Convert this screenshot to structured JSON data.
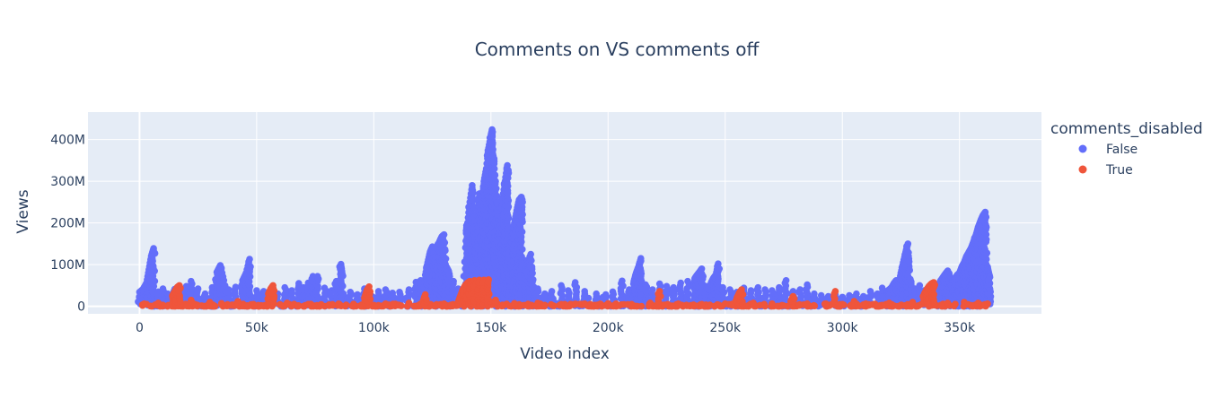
{
  "chart_data": {
    "type": "scatter",
    "title": "Comments on VS comments off",
    "xlabel": "Video index",
    "ylabel": "Views",
    "xlim": [
      -22000,
      385000
    ],
    "ylim": [
      -18000000,
      466000000
    ],
    "x_ticks": [
      0,
      50000,
      100000,
      150000,
      200000,
      250000,
      300000,
      350000
    ],
    "x_tick_labels": [
      "0",
      "50k",
      "100k",
      "150k",
      "200k",
      "250k",
      "300k",
      "350k"
    ],
    "y_ticks": [
      0,
      100000000,
      200000000,
      300000000,
      400000000
    ],
    "y_tick_labels": [
      "0",
      "100M",
      "200M",
      "300M",
      "400M"
    ],
    "grid": true,
    "legend": {
      "title": "comments_disabled",
      "placement": "right"
    },
    "series": [
      {
        "name": "False",
        "color": "#636efa",
        "points": [
          [
            0,
            34000000
          ],
          [
            1500,
            41000000
          ],
          [
            3000,
            56000000
          ],
          [
            4000,
            88000000
          ],
          [
            5000,
            120000000
          ],
          [
            6000,
            139000000
          ],
          [
            8000,
            35000000
          ],
          [
            10000,
            42000000
          ],
          [
            12000,
            30000000
          ],
          [
            15000,
            41000000
          ],
          [
            18000,
            37000000
          ],
          [
            20000,
            48000000
          ],
          [
            22000,
            60000000
          ],
          [
            25000,
            42000000
          ],
          [
            28000,
            30000000
          ],
          [
            31000,
            45000000
          ],
          [
            33000,
            82000000
          ],
          [
            34500,
            98000000
          ],
          [
            36000,
            62000000
          ],
          [
            38000,
            40000000
          ],
          [
            41000,
            46000000
          ],
          [
            44000,
            62000000
          ],
          [
            45500,
            80000000
          ],
          [
            47000,
            113000000
          ],
          [
            50000,
            38000000
          ],
          [
            53000,
            36000000
          ],
          [
            56000,
            26000000
          ],
          [
            59000,
            30000000
          ],
          [
            62000,
            45000000
          ],
          [
            65000,
            38000000
          ],
          [
            68000,
            55000000
          ],
          [
            70000,
            45000000
          ],
          [
            72000,
            56000000
          ],
          [
            74000,
            72000000
          ],
          [
            76000,
            72000000
          ],
          [
            79000,
            44000000
          ],
          [
            82000,
            38000000
          ],
          [
            84000,
            60000000
          ],
          [
            86000,
            101000000
          ],
          [
            86500,
            79000000
          ],
          [
            90000,
            34000000
          ],
          [
            93000,
            28000000
          ],
          [
            96000,
            42000000
          ],
          [
            99000,
            25000000
          ],
          [
            102000,
            36000000
          ],
          [
            105000,
            40000000
          ],
          [
            108000,
            32000000
          ],
          [
            111000,
            34000000
          ],
          [
            115000,
            40000000
          ],
          [
            118000,
            58000000
          ],
          [
            120000,
            62000000
          ],
          [
            122000,
            75000000
          ],
          [
            123000,
            105000000
          ],
          [
            124000,
            130000000
          ],
          [
            125000,
            143000000
          ],
          [
            126000,
            110000000
          ],
          [
            127000,
            80000000
          ],
          [
            128000,
            155000000
          ],
          [
            129000,
            167000000
          ],
          [
            130000,
            172000000
          ],
          [
            131000,
            95000000
          ],
          [
            132000,
            84000000
          ],
          [
            134000,
            60000000
          ],
          [
            136000,
            42000000
          ],
          [
            138000,
            38000000
          ],
          [
            139500,
            175000000
          ],
          [
            140000,
            200000000
          ],
          [
            141000,
            250000000
          ],
          [
            142000,
            290000000
          ],
          [
            143000,
            220000000
          ],
          [
            144000,
            160000000
          ],
          [
            145000,
            270000000
          ],
          [
            146000,
            250000000
          ],
          [
            147000,
            300000000
          ],
          [
            148000,
            330000000
          ],
          [
            149000,
            380000000
          ],
          [
            150000,
            410000000
          ],
          [
            150500,
            424000000
          ],
          [
            151000,
            360000000
          ],
          [
            152000,
            300000000
          ],
          [
            153000,
            230000000
          ],
          [
            154000,
            200000000
          ],
          [
            155000,
            260000000
          ],
          [
            156000,
            300000000
          ],
          [
            157000,
            338000000
          ],
          [
            158000,
            140000000
          ],
          [
            159000,
            170000000
          ],
          [
            160000,
            200000000
          ],
          [
            161000,
            230000000
          ],
          [
            162000,
            255000000
          ],
          [
            163000,
            262000000
          ],
          [
            165000,
            110000000
          ],
          [
            166000,
            90000000
          ],
          [
            167000,
            125000000
          ],
          [
            168000,
            64000000
          ],
          [
            170000,
            42000000
          ],
          [
            173000,
            30000000
          ],
          [
            176000,
            36000000
          ],
          [
            180000,
            50000000
          ],
          [
            183000,
            38000000
          ],
          [
            186000,
            57000000
          ],
          [
            190000,
            36000000
          ],
          [
            195000,
            30000000
          ],
          [
            199000,
            28000000
          ],
          [
            202000,
            35000000
          ],
          [
            206000,
            61000000
          ],
          [
            209000,
            40000000
          ],
          [
            211000,
            60000000
          ],
          [
            212000,
            80000000
          ],
          [
            213000,
            95000000
          ],
          [
            214000,
            115000000
          ],
          [
            216000,
            52000000
          ],
          [
            219000,
            40000000
          ],
          [
            222000,
            54000000
          ],
          [
            225000,
            48000000
          ],
          [
            228000,
            45000000
          ],
          [
            231000,
            56000000
          ],
          [
            234000,
            60000000
          ],
          [
            237000,
            67000000
          ],
          [
            238000,
            75000000
          ],
          [
            239000,
            82000000
          ],
          [
            240000,
            90000000
          ],
          [
            242000,
            48000000
          ],
          [
            244000,
            57000000
          ],
          [
            245000,
            68000000
          ],
          [
            246000,
            75000000
          ],
          [
            247000,
            102000000
          ],
          [
            249000,
            45000000
          ],
          [
            252000,
            40000000
          ],
          [
            255000,
            34000000
          ],
          [
            258000,
            44000000
          ],
          [
            261000,
            38000000
          ],
          [
            264000,
            45000000
          ],
          [
            267000,
            40000000
          ],
          [
            270000,
            38000000
          ],
          [
            273000,
            45000000
          ],
          [
            276000,
            62000000
          ],
          [
            279000,
            36000000
          ],
          [
            282000,
            40000000
          ],
          [
            285000,
            52000000
          ],
          [
            288000,
            30000000
          ],
          [
            291000,
            26000000
          ],
          [
            294000,
            24000000
          ],
          [
            297000,
            28000000
          ],
          [
            300000,
            22000000
          ],
          [
            303000,
            26000000
          ],
          [
            306000,
            30000000
          ],
          [
            309000,
            24000000
          ],
          [
            312000,
            36000000
          ],
          [
            315000,
            30000000
          ],
          [
            317000,
            44000000
          ],
          [
            319000,
            35000000
          ],
          [
            320000,
            40000000
          ],
          [
            321000,
            45000000
          ],
          [
            322000,
            55000000
          ],
          [
            323000,
            62000000
          ],
          [
            324000,
            52000000
          ],
          [
            325000,
            80000000
          ],
          [
            326000,
            105000000
          ],
          [
            327000,
            130000000
          ],
          [
            328000,
            150000000
          ],
          [
            329000,
            65000000
          ],
          [
            331000,
            42000000
          ],
          [
            333000,
            50000000
          ],
          [
            335000,
            38000000
          ],
          [
            337000,
            48000000
          ],
          [
            339000,
            55000000
          ],
          [
            341000,
            50000000
          ],
          [
            342000,
            62000000
          ],
          [
            343000,
            70000000
          ],
          [
            344000,
            78000000
          ],
          [
            345000,
            85000000
          ],
          [
            346000,
            70000000
          ],
          [
            347000,
            62000000
          ],
          [
            348000,
            65000000
          ],
          [
            349000,
            75000000
          ],
          [
            350000,
            80000000
          ],
          [
            351000,
            95000000
          ],
          [
            352000,
            105000000
          ],
          [
            353000,
            120000000
          ],
          [
            354000,
            130000000
          ],
          [
            355000,
            140000000
          ],
          [
            356000,
            155000000
          ],
          [
            357000,
            170000000
          ],
          [
            358000,
            190000000
          ],
          [
            359000,
            205000000
          ],
          [
            360000,
            218000000
          ],
          [
            361000,
            226000000
          ],
          [
            362000,
            95000000
          ],
          [
            362500,
            80000000
          ],
          [
            363000,
            70000000
          ]
        ]
      },
      {
        "name": "True",
        "color": "#ef553b",
        "points": [
          [
            2000,
            6000000
          ],
          [
            8000,
            8000000
          ],
          [
            14000,
            25000000
          ],
          [
            15000,
            35000000
          ],
          [
            16000,
            45000000
          ],
          [
            17000,
            50000000
          ],
          [
            22000,
            15000000
          ],
          [
            30000,
            10000000
          ],
          [
            35000,
            7000000
          ],
          [
            42000,
            12000000
          ],
          [
            55000,
            30000000
          ],
          [
            56000,
            42000000
          ],
          [
            57000,
            50000000
          ],
          [
            63000,
            8000000
          ],
          [
            72000,
            5000000
          ],
          [
            85000,
            6000000
          ],
          [
            96000,
            20000000
          ],
          [
            97000,
            38000000
          ],
          [
            98000,
            47000000
          ],
          [
            105000,
            6000000
          ],
          [
            115000,
            8000000
          ],
          [
            121000,
            12000000
          ],
          [
            122000,
            28000000
          ],
          [
            130000,
            6000000
          ],
          [
            136000,
            10000000
          ],
          [
            137000,
            25000000
          ],
          [
            138000,
            40000000
          ],
          [
            139000,
            50000000
          ],
          [
            140000,
            56000000
          ],
          [
            141000,
            60000000
          ],
          [
            143000,
            62000000
          ],
          [
            145000,
            63000000
          ],
          [
            147000,
            63000000
          ],
          [
            149000,
            64000000
          ],
          [
            152000,
            15000000
          ],
          [
            160000,
            7000000
          ],
          [
            170000,
            8000000
          ],
          [
            180000,
            5000000
          ],
          [
            190000,
            6000000
          ],
          [
            200000,
            7000000
          ],
          [
            210000,
            5000000
          ],
          [
            218000,
            8000000
          ],
          [
            222000,
            36000000
          ],
          [
            230000,
            6000000
          ],
          [
            240000,
            5000000
          ],
          [
            250000,
            6000000
          ],
          [
            255000,
            20000000
          ],
          [
            256000,
            32000000
          ],
          [
            257000,
            40000000
          ],
          [
            262000,
            8000000
          ],
          [
            270000,
            6000000
          ],
          [
            278000,
            12000000
          ],
          [
            279000,
            24000000
          ],
          [
            285000,
            6000000
          ],
          [
            293000,
            6000000
          ],
          [
            297000,
            36000000
          ],
          [
            300000,
            5000000
          ],
          [
            305000,
            12000000
          ],
          [
            310000,
            6000000
          ],
          [
            320000,
            8000000
          ],
          [
            330000,
            10000000
          ],
          [
            335000,
            30000000
          ],
          [
            336000,
            40000000
          ],
          [
            337000,
            48000000
          ],
          [
            338000,
            54000000
          ],
          [
            339000,
            57000000
          ],
          [
            345000,
            8000000
          ],
          [
            352000,
            10000000
          ],
          [
            358000,
            8000000
          ],
          [
            362000,
            6000000
          ]
        ]
      }
    ]
  }
}
